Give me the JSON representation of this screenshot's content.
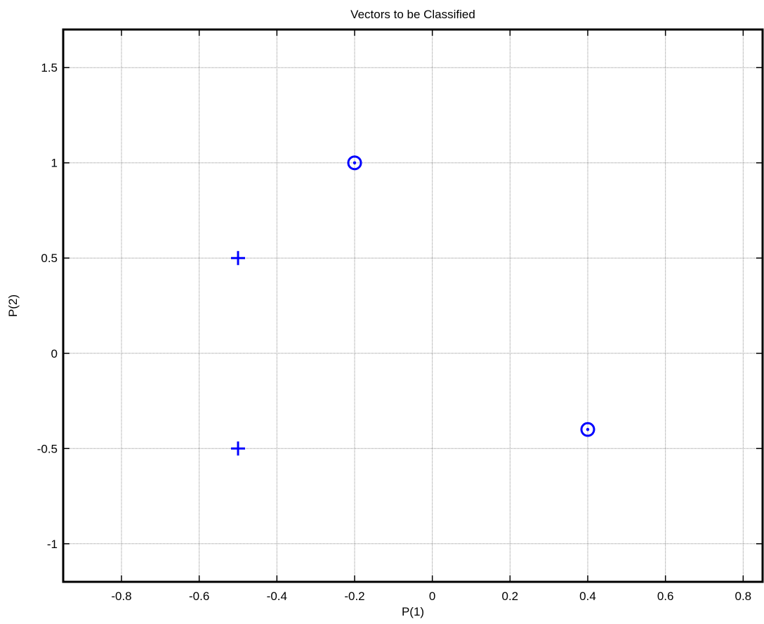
{
  "chart_data": {
    "type": "scatter",
    "title": "Vectors to be Classified",
    "xlabel": "P(1)",
    "ylabel": "P(2)",
    "xlim": [
      -0.95,
      0.85
    ],
    "ylim": [
      -1.2,
      1.7
    ],
    "xticks": [
      -0.8,
      -0.6,
      -0.4,
      -0.2,
      0,
      0.2,
      0.4,
      0.6,
      0.8
    ],
    "xtick_labels": [
      "-0.8",
      "-0.6",
      "-0.4",
      "-0.2",
      "0",
      "0.2",
      "0.4",
      "0.6",
      "0.8"
    ],
    "yticks": [
      -1,
      -0.5,
      0,
      0.5,
      1,
      1.5
    ],
    "ytick_labels": [
      "-1",
      "-0.5",
      "0",
      "0.5",
      "1",
      "1.5"
    ],
    "grid": true,
    "marker_color": "#0000ff",
    "series": [
      {
        "marker": "plus",
        "points": [
          [
            -0.5,
            0.5
          ],
          [
            -0.5,
            -0.5
          ]
        ]
      },
      {
        "marker": "circle-dot",
        "points": [
          [
            -0.2,
            1.0
          ],
          [
            0.4,
            -0.4
          ]
        ]
      }
    ]
  }
}
